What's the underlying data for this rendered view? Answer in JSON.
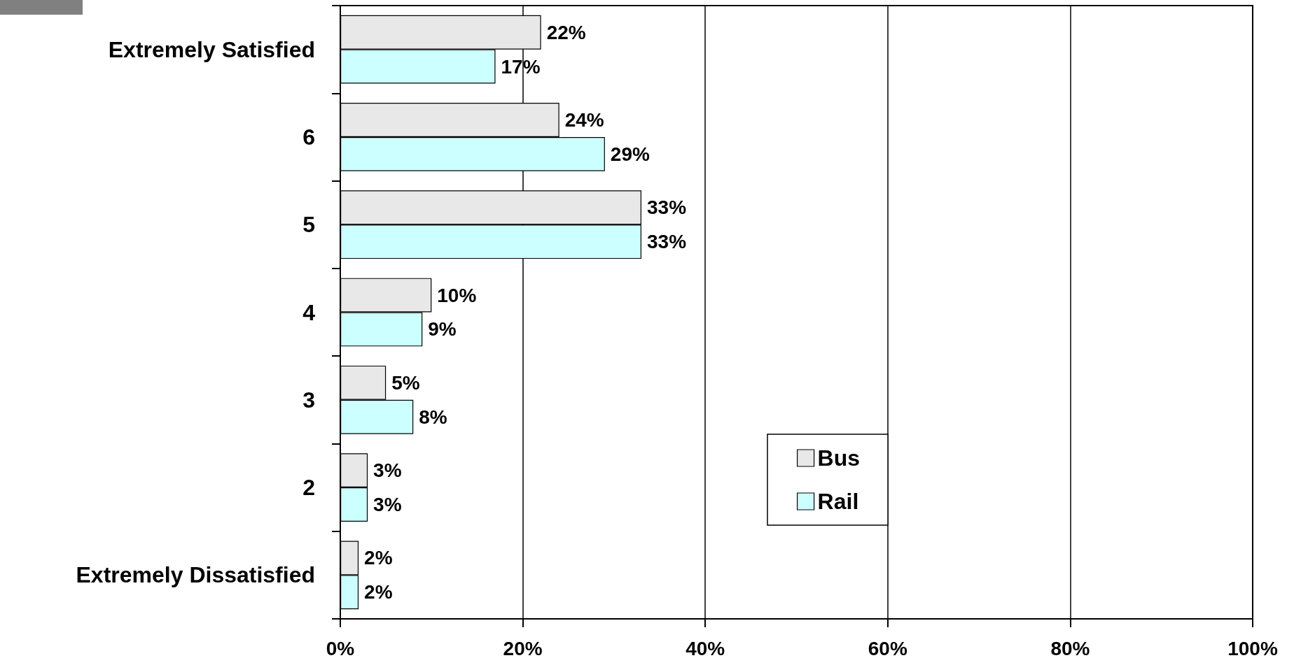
{
  "chart_data": {
    "type": "bar",
    "orientation": "horizontal",
    "categories": [
      "Extremely Satisfied",
      "6",
      "5",
      "4",
      "3",
      "2",
      "Extremely Dissatisfied"
    ],
    "series": [
      {
        "name": "Bus",
        "color": "#e8e8e8",
        "values": [
          22,
          24,
          33,
          10,
          5,
          3,
          2
        ],
        "value_labels": [
          "22%",
          "24%",
          "33%",
          "10%",
          "5%",
          "3%",
          "2%"
        ]
      },
      {
        "name": "Rail",
        "color": "#ccffff",
        "values": [
          17,
          29,
          33,
          9,
          8,
          3,
          2
        ],
        "value_labels": [
          "17%",
          "29%",
          "33%",
          "9%",
          "8%",
          "3%",
          "2%"
        ]
      }
    ],
    "xlim": [
      0,
      100
    ],
    "xticks": [
      {
        "value": 0,
        "label": "0%"
      },
      {
        "value": 20,
        "label": "20%"
      },
      {
        "value": 40,
        "label": "40%"
      },
      {
        "value": 60,
        "label": "60%"
      },
      {
        "value": 80,
        "label": "80%"
      },
      {
        "value": 100,
        "label": "100%"
      }
    ],
    "grid": "x",
    "legend": "bottom"
  }
}
